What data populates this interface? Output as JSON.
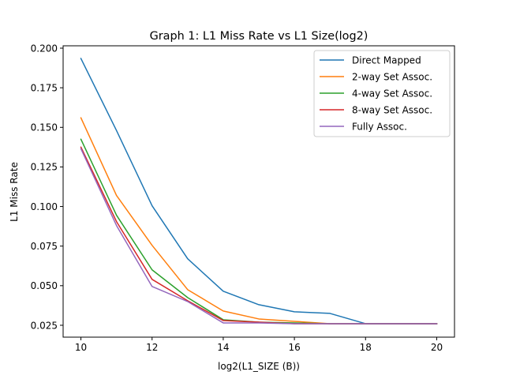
{
  "chart_data": {
    "type": "line",
    "title": "Graph 1: L1 Miss Rate vs L1 Size(log2)",
    "xlabel": "log2(L1_SIZE (B))",
    "ylabel": "L1 Miss Rate",
    "xlim": [
      9.5,
      20.5
    ],
    "ylim": [
      0.0175,
      0.2015
    ],
    "x": [
      10,
      11,
      12,
      13,
      14,
      15,
      16,
      17,
      18,
      19,
      20
    ],
    "xticks": [
      10,
      12,
      14,
      16,
      18,
      20
    ],
    "xtick_labels": [
      "10",
      "12",
      "14",
      "16",
      "18",
      "20"
    ],
    "yticks": [
      0.025,
      0.05,
      0.075,
      0.1,
      0.125,
      0.15,
      0.175,
      0.2
    ],
    "ytick_labels": [
      "0.025",
      "0.050",
      "0.075",
      "0.100",
      "0.125",
      "0.150",
      "0.175",
      "0.200"
    ],
    "grid": false,
    "legend_position": "top-right",
    "series": [
      {
        "name": "Direct Mapped",
        "color": "#1f77b4",
        "values": [
          0.1935,
          0.148,
          0.1005,
          0.067,
          0.0465,
          0.038,
          0.0335,
          0.0325,
          0.026,
          0.026,
          0.026
        ]
      },
      {
        "name": "2-way Set Assoc.",
        "color": "#ff7f0e",
        "values": [
          0.156,
          0.107,
          0.0755,
          0.0475,
          0.034,
          0.029,
          0.0275,
          0.026,
          0.026,
          0.026,
          0.026
        ]
      },
      {
        "name": "4-way Set Assoc.",
        "color": "#2ca02c",
        "values": [
          0.1425,
          0.0945,
          0.06,
          0.0425,
          0.0285,
          0.027,
          0.0265,
          0.026,
          0.026,
          0.026,
          0.026
        ]
      },
      {
        "name": "8-way Set Assoc.",
        "color": "#d62728",
        "values": [
          0.1375,
          0.0905,
          0.054,
          0.0405,
          0.028,
          0.027,
          0.026,
          0.026,
          0.026,
          0.026,
          0.026
        ]
      },
      {
        "name": "Fully Assoc.",
        "color": "#9467bd",
        "values": [
          0.1365,
          0.088,
          0.0495,
          0.04,
          0.0265,
          0.0265,
          0.026,
          0.026,
          0.026,
          0.026,
          0.026
        ]
      }
    ]
  }
}
